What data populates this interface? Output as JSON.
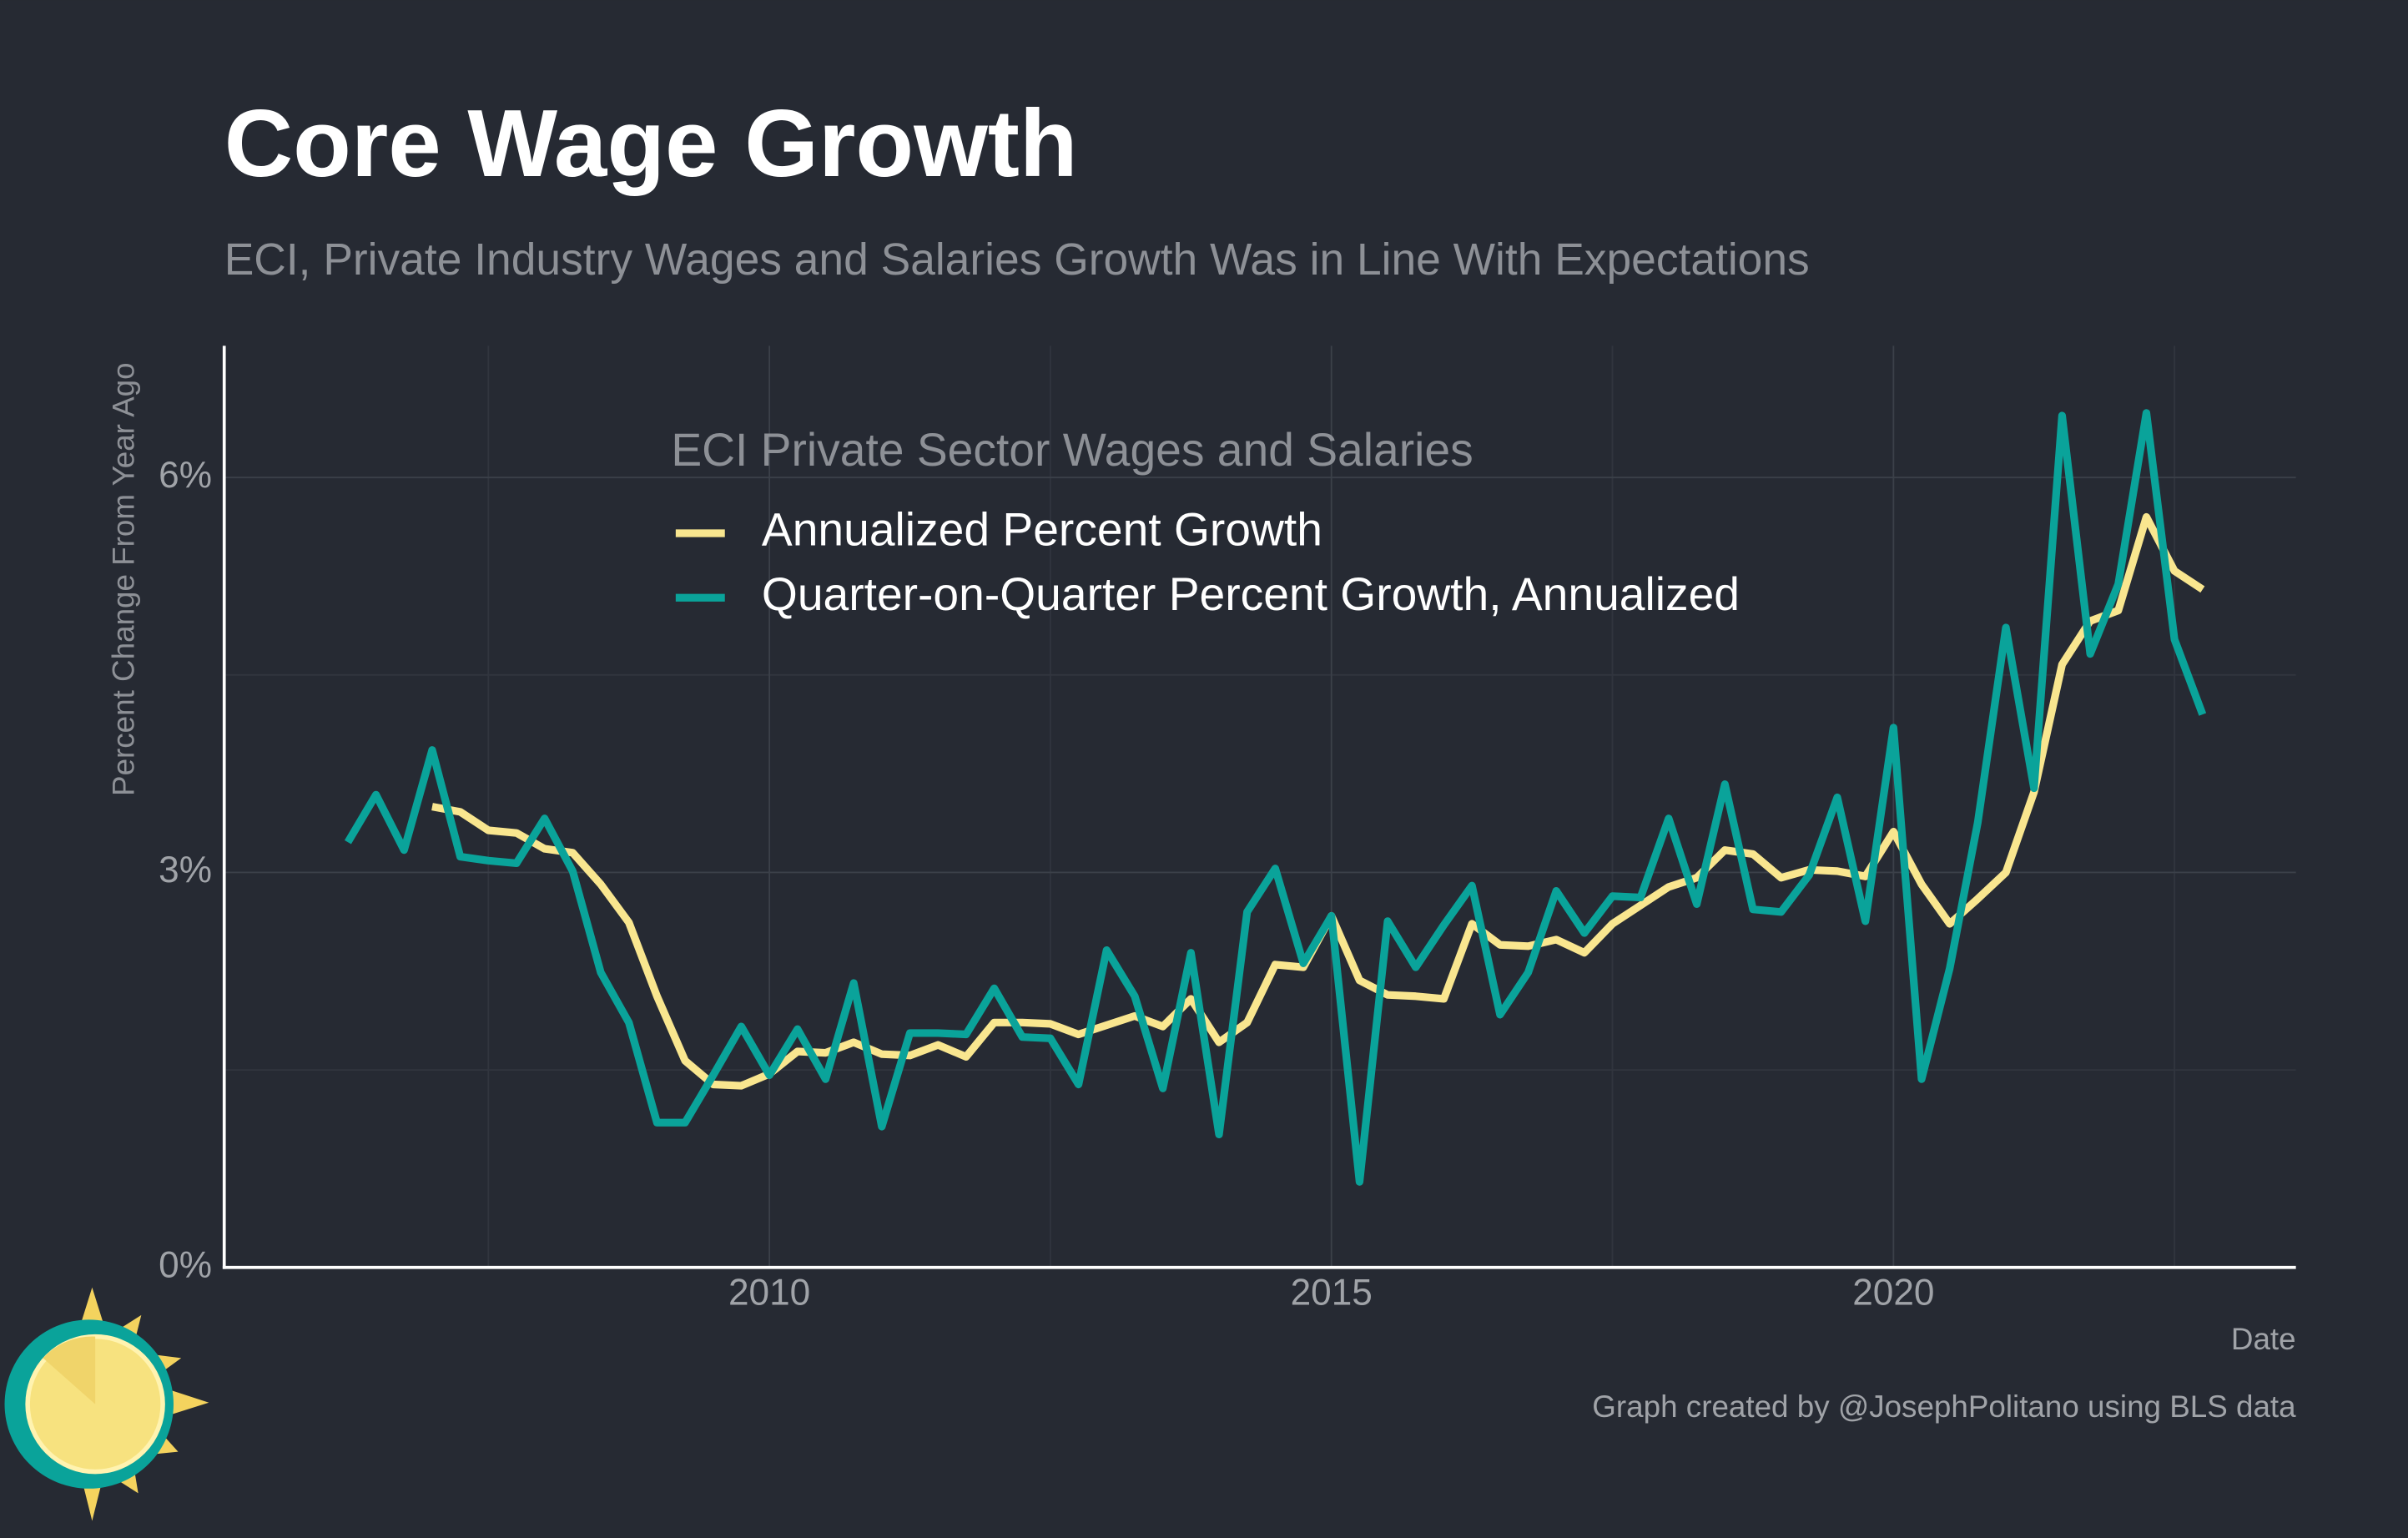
{
  "chart_data": {
    "type": "line",
    "title": "Core Wage Growth",
    "subtitle": "ECI, Private Industry Wages and Salaries Growth Was in Line With Expectations",
    "y_label": "Percent Change From Year Ago",
    "x_label": "Date",
    "legend_title": "ECI Private Sector Wages and Salaries",
    "caption": "Graph created by @JosephPolitano using BLS data",
    "grid": true,
    "x": [
      2006.25,
      2006.5,
      2006.75,
      2007,
      2007.25,
      2007.5,
      2007.75,
      2008,
      2008.25,
      2008.5,
      2008.75,
      2009,
      2009.25,
      2009.5,
      2009.75,
      2010,
      2010.25,
      2010.5,
      2010.75,
      2011,
      2011.25,
      2011.5,
      2011.75,
      2012,
      2012.25,
      2012.5,
      2012.75,
      2013,
      2013.25,
      2013.5,
      2013.75,
      2014,
      2014.25,
      2014.5,
      2014.75,
      2015,
      2015.25,
      2015.5,
      2015.75,
      2016,
      2016.25,
      2016.5,
      2016.75,
      2017,
      2017.25,
      2017.5,
      2017.75,
      2018,
      2018.25,
      2018.5,
      2018.75,
      2019,
      2019.25,
      2019.5,
      2019.75,
      2020,
      2020.25,
      2020.5,
      2020.75,
      2021,
      2021.25,
      2021.5,
      2021.75,
      2022,
      2022.25,
      2022.5,
      2022.75
    ],
    "xlim": [
      2005.15,
      2023.58
    ],
    "xticks": [
      2010,
      2015,
      2020
    ],
    "ylim": [
      0,
      7
    ],
    "yticks": [
      {
        "value": 0,
        "label": "0%"
      },
      {
        "value": 3,
        "label": "3%"
      },
      {
        "value": 6,
        "label": "6%"
      }
    ],
    "series": [
      {
        "name": "Annualized Percent Growth",
        "color": "#f9e68f",
        "values": [
          null,
          null,
          null,
          3.5,
          3.46,
          3.32,
          3.3,
          3.18,
          3.15,
          2.91,
          2.62,
          2.06,
          1.57,
          1.39,
          1.38,
          1.47,
          1.64,
          1.63,
          1.71,
          1.62,
          1.61,
          1.69,
          1.6,
          1.86,
          1.86,
          1.85,
          1.77,
          1.84,
          1.91,
          1.83,
          2.04,
          1.71,
          1.86,
          2.3,
          2.28,
          2.67,
          2.18,
          2.07,
          2.06,
          2.04,
          2.61,
          2.45,
          2.44,
          2.49,
          2.39,
          2.61,
          2.75,
          2.89,
          2.96,
          3.17,
          3.14,
          2.96,
          3.02,
          3.01,
          2.97,
          3.31,
          2.91,
          2.61,
          2.8,
          3.0,
          3.61,
          4.58,
          4.91,
          4.99,
          5.7,
          5.29,
          5.15
        ]
      },
      {
        "name": "Quarter-on-Quarter Percent Growth, Annualized",
        "color": "#0aa39a",
        "values": [
          3.23,
          3.59,
          3.17,
          3.93,
          3.12,
          3.09,
          3.07,
          3.41,
          3.01,
          2.24,
          1.86,
          1.1,
          1.1,
          1.46,
          1.83,
          1.46,
          1.81,
          1.43,
          2.16,
          1.07,
          1.78,
          1.78,
          1.77,
          2.12,
          1.75,
          1.74,
          1.39,
          2.41,
          2.06,
          1.36,
          2.39,
          1.01,
          2.7,
          3.03,
          2.31,
          2.67,
          0.65,
          2.63,
          2.28,
          2.6,
          2.9,
          1.92,
          2.24,
          2.86,
          2.54,
          2.82,
          2.81,
          3.41,
          2.76,
          3.67,
          2.72,
          2.7,
          2.98,
          3.57,
          2.63,
          4.1,
          1.43,
          2.27,
          3.38,
          4.86,
          3.64,
          6.47,
          4.66,
          5.19,
          6.49,
          4.77,
          4.2
        ]
      }
    ]
  }
}
